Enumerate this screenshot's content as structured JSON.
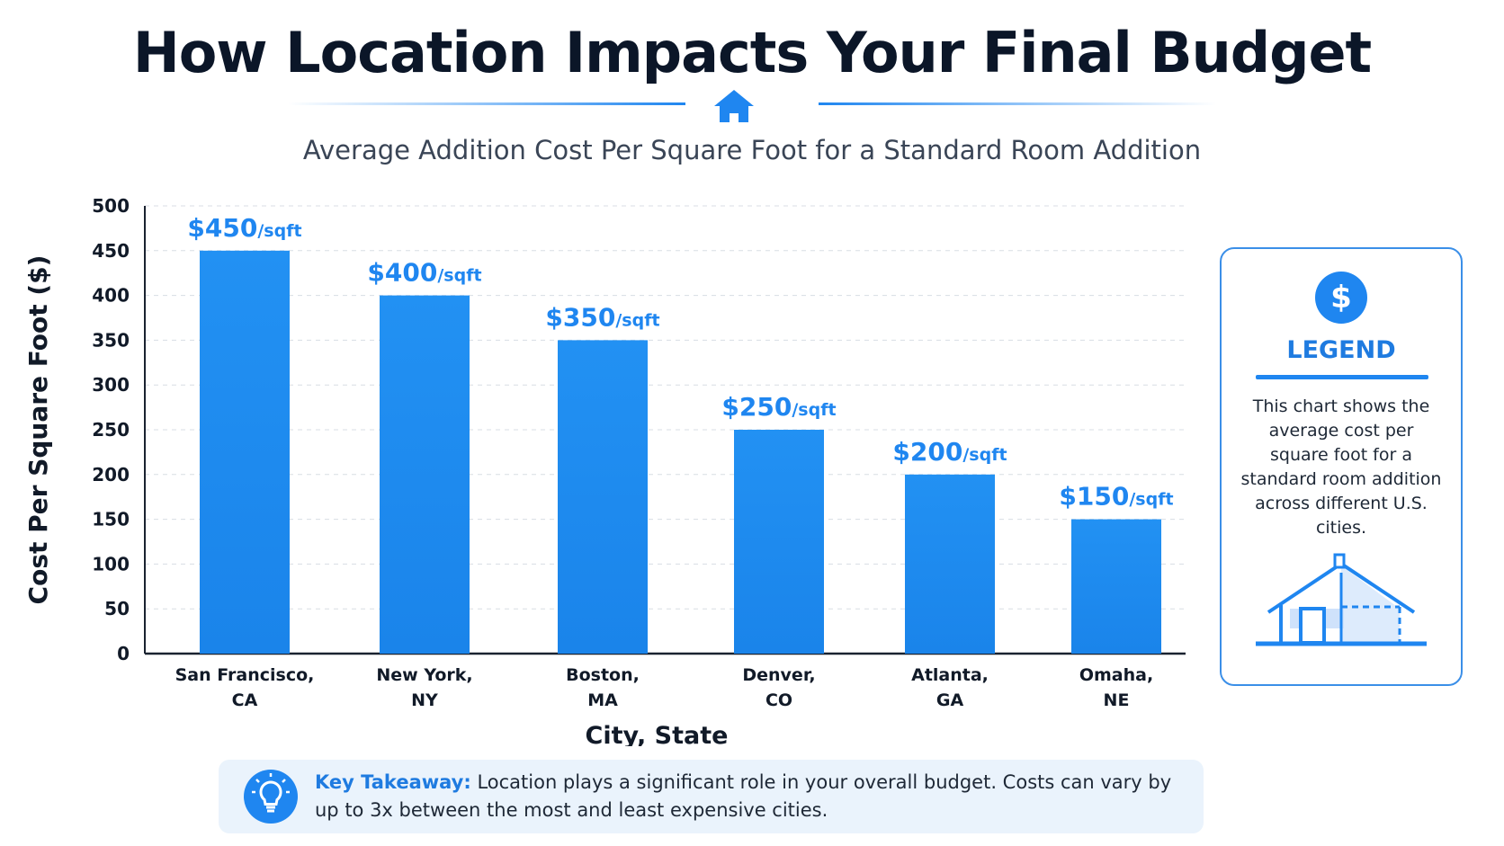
{
  "header": {
    "title": "How Location Impacts Your Final Budget",
    "subtitle": "Average Addition Cost Per Square Foot for a Standard Room Addition"
  },
  "chart_data": {
    "type": "bar",
    "categories": [
      [
        "San Francisco,",
        "CA"
      ],
      [
        "New York,",
        "NY"
      ],
      [
        "Boston,",
        "MA"
      ],
      [
        "Denver,",
        "CO"
      ],
      [
        "Atlanta,",
        "GA"
      ],
      [
        "Omaha,",
        "NE"
      ]
    ],
    "values": [
      450,
      400,
      350,
      250,
      200,
      150
    ],
    "value_labels": [
      {
        "amount": "$450",
        "unit": "/sqft"
      },
      {
        "amount": "$400",
        "unit": "/sqft"
      },
      {
        "amount": "$350",
        "unit": "/sqft"
      },
      {
        "amount": "$250",
        "unit": "/sqft"
      },
      {
        "amount": "$200",
        "unit": "/sqft"
      },
      {
        "amount": "$150",
        "unit": "/sqft"
      }
    ],
    "xlabel": "City, State",
    "ylabel": "Cost Per Square Foot ($)",
    "ylim": [
      0,
      500
    ],
    "yticks": [
      0,
      50,
      100,
      150,
      200,
      250,
      300,
      350,
      400,
      450,
      500
    ],
    "grid": true,
    "bar_color": "#2291f3",
    "label_color": "#1f86f0"
  },
  "legend": {
    "icon": "dollar-icon",
    "symbol": "$",
    "title": "LEGEND",
    "text": "This chart shows the average cost per square foot for a standard room addition across different U.S. cities.",
    "illustration": "house-addition-icon"
  },
  "takeaway": {
    "icon": "lightbulb-icon",
    "label": "Key Takeaway:",
    "text": " Location plays a significant role in your overall budget. Costs can vary by up to 3x between the most and least expensive cities."
  },
  "colors": {
    "accent": "#1f86f0",
    "title": "#0b1628",
    "panel": "#eaf3fc"
  }
}
